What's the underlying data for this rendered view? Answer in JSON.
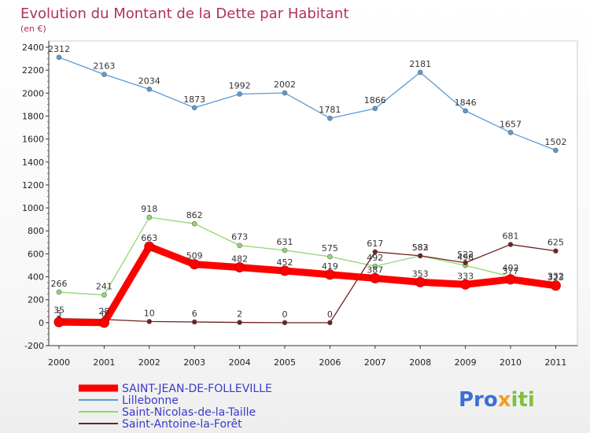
{
  "chart_data": {
    "type": "line",
    "title": "Evolution du Montant de la Dette par Habitant",
    "subtitle": "(en €)",
    "x": [
      "2000",
      "2001",
      "2002",
      "2003",
      "2004",
      "2005",
      "2006",
      "2007",
      "2008",
      "2009",
      "2010",
      "2011"
    ],
    "ylim": [
      -200,
      2400
    ],
    "yticks": [
      -200,
      0,
      200,
      400,
      600,
      800,
      1000,
      1200,
      1400,
      1600,
      1800,
      2000,
      2200,
      2400
    ],
    "grid": false,
    "legend_position": "bottom-left",
    "series": [
      {
        "name": "SAINT-JEAN-DE-FOLLEVILLE",
        "color": "#ff0000",
        "values": [
          5,
          0,
          663,
          509,
          482,
          452,
          419,
          387,
          353,
          333,
          377,
          323
        ]
      },
      {
        "name": "Lillebonne",
        "color": "#5b9bd5",
        "values": [
          2312,
          2163,
          2034,
          1873,
          1992,
          2002,
          1781,
          1866,
          2181,
          1846,
          1657,
          1502
        ]
      },
      {
        "name": "Saint-Nicolas-de-la-Taille",
        "color": "#8fd870",
        "values": [
          266,
          241,
          918,
          862,
          673,
          631,
          575,
          492,
          582,
          498,
          402,
          332
        ]
      },
      {
        "name": "Saint-Antoine-la-Forêt",
        "color": "#702020",
        "values": [
          35,
          28,
          10,
          6,
          2,
          0,
          0,
          617,
          583,
          522,
          681,
          625
        ]
      }
    ]
  },
  "logo": {
    "text": "Proxiti"
  }
}
